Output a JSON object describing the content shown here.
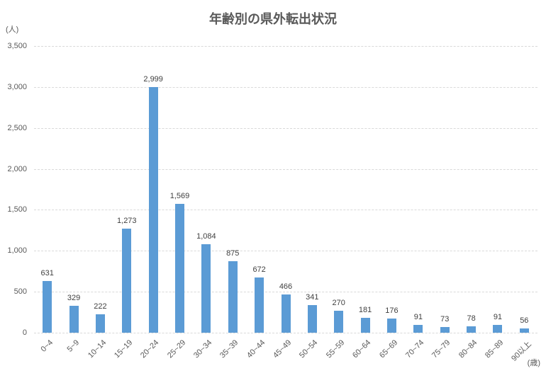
{
  "chart_data": {
    "type": "bar",
    "title": "年齢別の県外転出状況",
    "y_axis_unit": "(人)",
    "x_axis_unit": "(歳)",
    "categories": [
      "0~4",
      "5~9",
      "10~14",
      "15~19",
      "20~24",
      "25~29",
      "30~34",
      "35~39",
      "40~44",
      "45~49",
      "50~54",
      "55~59",
      "60~64",
      "65~69",
      "70~74",
      "75~79",
      "80~84",
      "85~89",
      "90以上"
    ],
    "values": [
      631,
      329,
      222,
      1273,
      2999,
      1569,
      1084,
      875,
      672,
      466,
      341,
      270,
      181,
      176,
      91,
      73,
      78,
      91,
      56
    ],
    "value_labels": [
      "631",
      "329",
      "222",
      "1,273",
      "2,999",
      "1,569",
      "1,084",
      "875",
      "672",
      "466",
      "341",
      "270",
      "181",
      "176",
      "91",
      "73",
      "78",
      "91",
      "56"
    ],
    "xlabel": "(歳)",
    "ylabel": "(人)",
    "ylim": [
      0,
      3500
    ],
    "ytick_step": 500,
    "ytick_labels": [
      "0",
      "500",
      "1,000",
      "1,500",
      "2,000",
      "2,500",
      "3,000",
      "3,500"
    ],
    "grid": "horizontal-dashed",
    "legend_position": "none",
    "bar_color": "#5b9bd5",
    "gridline_color": "#d9d9d9",
    "title_color": "#595959",
    "axis_label_color": "#595959",
    "value_label_color": "#404040"
  }
}
